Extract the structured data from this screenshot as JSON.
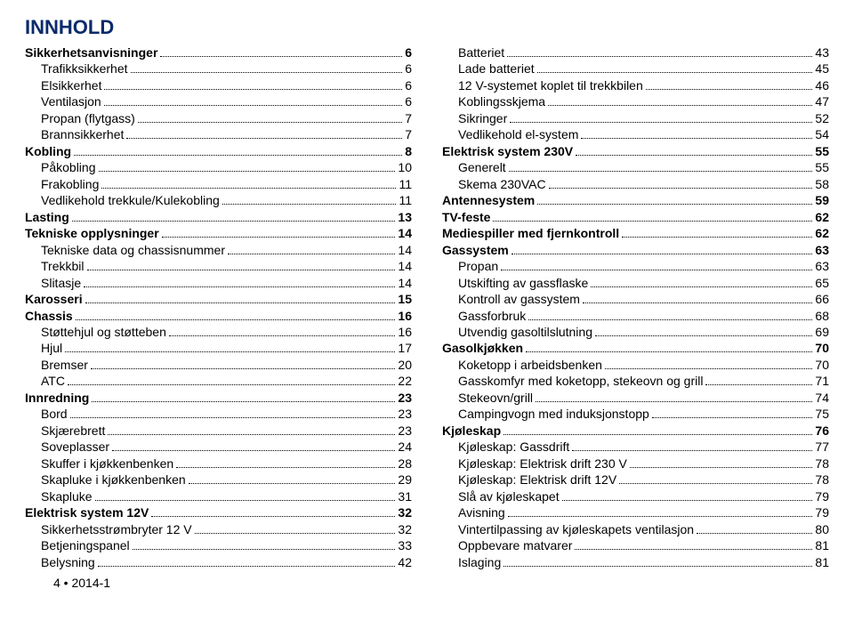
{
  "title": "INNHOLD",
  "footer": "4   •  2014-1",
  "leftColumn": [
    {
      "label": "Sikkerhetsanvisninger",
      "page": "6",
      "bold": true,
      "indent": false
    },
    {
      "label": "Trafikksikkerhet",
      "page": "6",
      "bold": false,
      "indent": true
    },
    {
      "label": "Elsikkerhet",
      "page": "6",
      "bold": false,
      "indent": true
    },
    {
      "label": "Ventilasjon",
      "page": "6",
      "bold": false,
      "indent": true
    },
    {
      "label": "Propan (flytgass)",
      "page": "7",
      "bold": false,
      "indent": true
    },
    {
      "label": "Brannsikkerhet",
      "page": "7",
      "bold": false,
      "indent": true
    },
    {
      "label": "Kobling",
      "page": "8",
      "bold": true,
      "indent": false
    },
    {
      "label": "Påkobling",
      "page": "10",
      "bold": false,
      "indent": true
    },
    {
      "label": "Frakobling",
      "page": "11",
      "bold": false,
      "indent": true
    },
    {
      "label": "Vedlikehold trekkule/Kulekobling",
      "page": "11",
      "bold": false,
      "indent": true
    },
    {
      "label": "Lasting",
      "page": "13",
      "bold": true,
      "indent": false
    },
    {
      "label": "Tekniske opplysninger",
      "page": "14",
      "bold": true,
      "indent": false
    },
    {
      "label": "Tekniske data og chassisnummer",
      "page": "14",
      "bold": false,
      "indent": true
    },
    {
      "label": "Trekkbil",
      "page": "14",
      "bold": false,
      "indent": true
    },
    {
      "label": "Slitasje",
      "page": "14",
      "bold": false,
      "indent": true
    },
    {
      "label": "Karosseri",
      "page": "15",
      "bold": true,
      "indent": false
    },
    {
      "label": "Chassis",
      "page": "16",
      "bold": true,
      "indent": false
    },
    {
      "label": "Støttehjul og støtteben",
      "page": "16",
      "bold": false,
      "indent": true
    },
    {
      "label": "Hjul",
      "page": "17",
      "bold": false,
      "indent": true
    },
    {
      "label": "Bremser",
      "page": "20",
      "bold": false,
      "indent": true
    },
    {
      "label": "ATC",
      "page": "22",
      "bold": false,
      "indent": true
    },
    {
      "label": "Innredning",
      "page": "23",
      "bold": true,
      "indent": false
    },
    {
      "label": "Bord",
      "page": "23",
      "bold": false,
      "indent": true
    },
    {
      "label": "Skjærebrett",
      "page": "23",
      "bold": false,
      "indent": true
    },
    {
      "label": "Soveplasser",
      "page": "24",
      "bold": false,
      "indent": true
    },
    {
      "label": "Skuffer i kjøkkenbenken",
      "page": "28",
      "bold": false,
      "indent": true
    },
    {
      "label": "Skapluke i kjøkkenbenken",
      "page": "29",
      "bold": false,
      "indent": true
    },
    {
      "label": "Skapluke",
      "page": "31",
      "bold": false,
      "indent": true
    },
    {
      "label": "Elektrisk system 12V",
      "page": "32",
      "bold": true,
      "indent": false
    },
    {
      "label": "Sikkerhetsstrømbryter 12 V",
      "page": "32",
      "bold": false,
      "indent": true
    },
    {
      "label": "Betjeningspanel",
      "page": "33",
      "bold": false,
      "indent": true
    },
    {
      "label": "Belysning",
      "page": "42",
      "bold": false,
      "indent": true
    }
  ],
  "rightColumn": [
    {
      "label": "Batteriet",
      "page": "43",
      "bold": false,
      "indent": true
    },
    {
      "label": "Lade batteriet",
      "page": "45",
      "bold": false,
      "indent": true
    },
    {
      "label": "12 V-systemet koplet til trekkbilen",
      "page": "46",
      "bold": false,
      "indent": true
    },
    {
      "label": "Koblingsskjema",
      "page": "47",
      "bold": false,
      "indent": true
    },
    {
      "label": "Sikringer",
      "page": "52",
      "bold": false,
      "indent": true
    },
    {
      "label": "Vedlikehold el-system",
      "page": "54",
      "bold": false,
      "indent": true
    },
    {
      "label": "Elektrisk system 230V",
      "page": "55",
      "bold": true,
      "indent": false
    },
    {
      "label": "Generelt",
      "page": "55",
      "bold": false,
      "indent": true
    },
    {
      "label": "Skema 230VAC",
      "page": "58",
      "bold": false,
      "indent": true
    },
    {
      "label": "Antennesystem",
      "page": "59",
      "bold": true,
      "indent": false
    },
    {
      "label": "TV-feste",
      "page": "62",
      "bold": true,
      "indent": false
    },
    {
      "label": "Mediespiller med fjernkontroll",
      "page": "62",
      "bold": true,
      "indent": false
    },
    {
      "label": "Gassystem",
      "page": "63",
      "bold": true,
      "indent": false
    },
    {
      "label": "Propan",
      "page": "63",
      "bold": false,
      "indent": true
    },
    {
      "label": "Utskifting av gassflaske",
      "page": "65",
      "bold": false,
      "indent": true
    },
    {
      "label": "Kontroll av gassystem",
      "page": "66",
      "bold": false,
      "indent": true
    },
    {
      "label": "Gassforbruk",
      "page": "68",
      "bold": false,
      "indent": true
    },
    {
      "label": "Utvendig gasoltilslutning",
      "page": "69",
      "bold": false,
      "indent": true
    },
    {
      "label": "Gasolkjøkken",
      "page": "70",
      "bold": true,
      "indent": false
    },
    {
      "label": "Koketopp i arbeidsbenken",
      "page": "70",
      "bold": false,
      "indent": true
    },
    {
      "label": "Gasskomfyr med koketopp, stekeovn og grill",
      "page": "71",
      "bold": false,
      "indent": true
    },
    {
      "label": "Stekeovn/grill",
      "page": "74",
      "bold": false,
      "indent": true
    },
    {
      "label": "Campingvogn med induksjonstopp",
      "page": "75",
      "bold": false,
      "indent": true
    },
    {
      "label": "Kjøleskap",
      "page": "76",
      "bold": true,
      "indent": false
    },
    {
      "label": "Kjøleskap: Gassdrift",
      "page": "77",
      "bold": false,
      "indent": true
    },
    {
      "label": "Kjøleskap: Elektrisk drift 230 V",
      "page": "78",
      "bold": false,
      "indent": true
    },
    {
      "label": "Kjøleskap: Elektrisk drift 12V",
      "page": "78",
      "bold": false,
      "indent": true
    },
    {
      "label": "Slå av kjøleskapet",
      "page": "79",
      "bold": false,
      "indent": true
    },
    {
      "label": "Avisning",
      "page": "79",
      "bold": false,
      "indent": true
    },
    {
      "label": "Vintertilpassing av kjøleskapets ventilasjon",
      "page": "80",
      "bold": false,
      "indent": true
    },
    {
      "label": "Oppbevare matvarer",
      "page": "81",
      "bold": false,
      "indent": true
    },
    {
      "label": "Islaging",
      "page": "81",
      "bold": false,
      "indent": true
    }
  ]
}
